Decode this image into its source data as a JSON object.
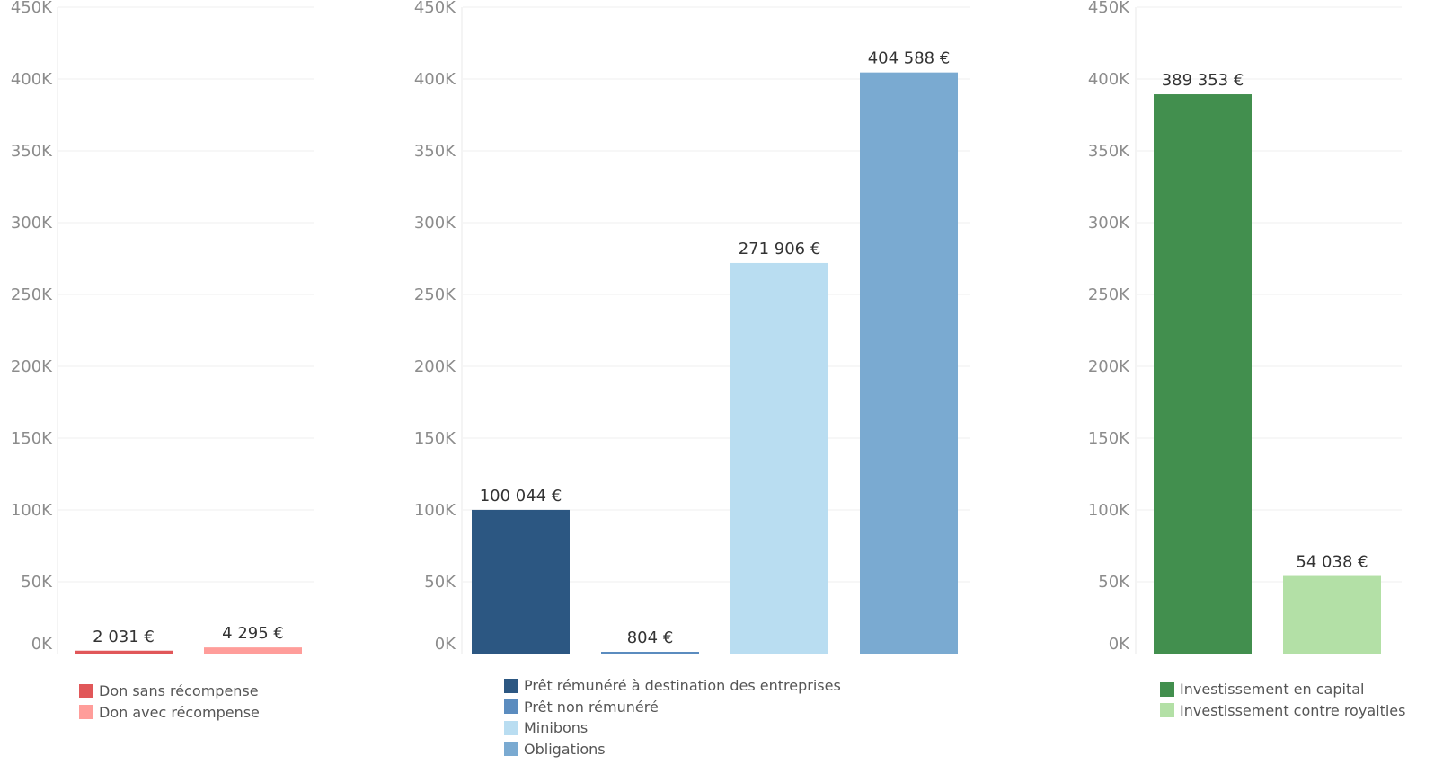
{
  "chart_data": [
    {
      "type": "bar",
      "categories": [
        "Don sans récompense",
        "Don avec récompense"
      ],
      "values": [
        2031,
        4295
      ],
      "value_labels": [
        "2 031 €",
        "4 295 €"
      ],
      "colors": [
        "#e15759",
        "#ff9d9a"
      ],
      "y_ticks": [
        "0K",
        "50K",
        "100K",
        "150K",
        "200K",
        "250K",
        "300K",
        "350K",
        "400K",
        "450K"
      ],
      "ylim": [
        0,
        450000
      ],
      "grid": true,
      "legend_position": "bottom"
    },
    {
      "type": "bar",
      "categories": [
        "Prêt rémunéré à destination des entreprises",
        "Prêt non rémunéré",
        "Minibons",
        "Obligations"
      ],
      "values": [
        100044,
        804,
        271906,
        404588
      ],
      "value_labels": [
        "100 044 €",
        "804 €",
        "271 906 €",
        "404 588 €"
      ],
      "colors": [
        "#2c5782",
        "#5b8cbf",
        "#b9ddf1",
        "#7aaad1"
      ],
      "y_ticks": [
        "0K",
        "50K",
        "100K",
        "150K",
        "200K",
        "250K",
        "300K",
        "350K",
        "400K",
        "450K"
      ],
      "ylim": [
        0,
        450000
      ],
      "grid": true,
      "legend_position": "bottom"
    },
    {
      "type": "bar",
      "categories": [
        "Investissement en capital",
        "Investissement contre royalties"
      ],
      "values": [
        389353,
        54038
      ],
      "value_labels": [
        "389 353 €",
        "54 038 €"
      ],
      "colors": [
        "#428f4e",
        "#b3e0a6"
      ],
      "y_ticks": [
        "0K",
        "50K",
        "100K",
        "150K",
        "200K",
        "250K",
        "300K",
        "350K",
        "400K",
        "450K"
      ],
      "ylim": [
        0,
        450000
      ],
      "grid": true,
      "legend_position": "bottom"
    }
  ]
}
